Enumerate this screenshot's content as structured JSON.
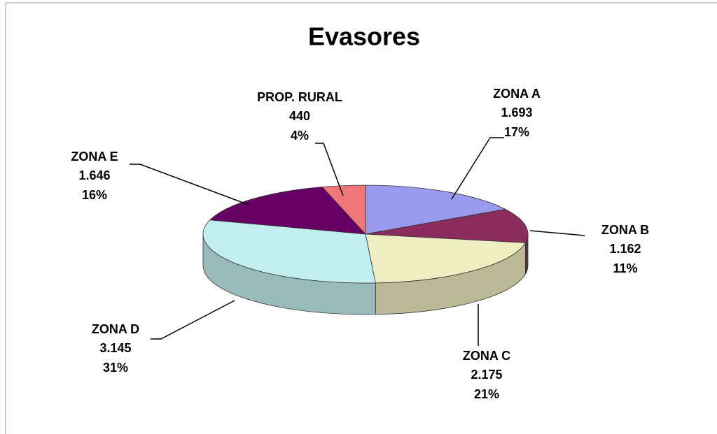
{
  "chart_data": {
    "type": "pie",
    "title": "Evasores",
    "categories": [
      "ZONA A",
      "ZONA B",
      "ZONA C",
      "ZONA D",
      "ZONA E",
      "PROP. RURAL"
    ],
    "values": [
      1693,
      1162,
      2175,
      3145,
      1646,
      440
    ],
    "value_labels": [
      "1.693",
      "1.162",
      "2.175",
      "3.145",
      "1.646",
      "440"
    ],
    "percentages": [
      17,
      11,
      21,
      31,
      16,
      4
    ],
    "percentage_labels": [
      "17%",
      "11%",
      "21%",
      "31%",
      "16%",
      "4%"
    ],
    "colors": [
      "#9999ee",
      "#8b2d5c",
      "#eeeec2",
      "#c2eef0",
      "#660066",
      "#ee7777"
    ]
  }
}
